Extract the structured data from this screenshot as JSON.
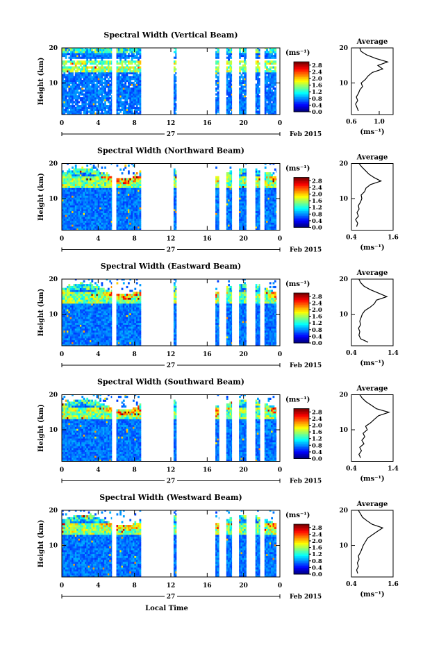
{
  "figure": {
    "date_label": "Feb 2015",
    "day_label": "27",
    "xlabel": "Local Time",
    "ylabel": "Height (km)",
    "units": "(ms⁻¹)",
    "avg_title": "Average",
    "avg_xlabel": "(ms⁻¹)",
    "colorbar_ticks": [
      "2.8",
      "2.4",
      "2.0",
      "1.6",
      "1.2",
      "0.8",
      "0.4",
      "0.0"
    ],
    "colormap": "jet",
    "colorbar_range": [
      0.0,
      3.0
    ]
  },
  "chart_data": [
    {
      "type": "heatmap",
      "title": "Spectral Width (Vertical Beam)",
      "xlim": [
        0,
        24
      ],
      "ylim": [
        1,
        20
      ],
      "xticks": [
        "0",
        "4",
        "8",
        "12",
        "16",
        "20",
        "0"
      ],
      "yticks": [
        "20",
        "10"
      ],
      "data_intervals_hours": [
        [
          0,
          5.5
        ],
        [
          6,
          8.7
        ],
        [
          12.3,
          12.6
        ],
        [
          16.9,
          17.3
        ],
        [
          18.1,
          18.7
        ],
        [
          19.5,
          20.3
        ],
        [
          21.3,
          21.8
        ],
        [
          22.3,
          23.6
        ]
      ],
      "profile": {
        "type": "line",
        "xticks": [
          "0.6",
          "1.0"
        ],
        "xlim": [
          0.6,
          1.2
        ],
        "height_km": [
          2,
          3,
          4,
          5,
          6,
          7,
          8,
          9,
          10,
          11,
          12,
          13,
          14,
          15,
          16,
          17,
          18,
          19,
          20
        ],
        "values": [
          0.7,
          0.68,
          0.66,
          0.69,
          0.67,
          0.7,
          0.72,
          0.76,
          0.74,
          0.8,
          0.84,
          0.9,
          1.05,
          0.98,
          1.12,
          0.95,
          0.82,
          0.74,
          0.72
        ]
      }
    },
    {
      "type": "heatmap",
      "title": "Spectral Width (Northward Beam)",
      "xlim": [
        0,
        24
      ],
      "ylim": [
        1,
        20
      ],
      "xticks": [
        "0",
        "4",
        "8",
        "12",
        "16",
        "20",
        "0"
      ],
      "yticks": [
        "20",
        "10"
      ],
      "data_intervals_hours": [
        [
          0,
          5.5
        ],
        [
          6,
          8.7
        ],
        [
          12.3,
          12.6
        ],
        [
          16.9,
          17.3
        ],
        [
          18.1,
          18.7
        ],
        [
          19.5,
          20.3
        ],
        [
          21.3,
          21.8
        ],
        [
          22.3,
          23.6
        ]
      ],
      "profile": {
        "type": "line",
        "xticks": [
          "0.4",
          "1.6"
        ],
        "xlim": [
          0.4,
          1.6
        ],
        "height_km": [
          2,
          3,
          4,
          5,
          6,
          7,
          8,
          9,
          10,
          11,
          12,
          13,
          14,
          15,
          16,
          17,
          18,
          19,
          20
        ],
        "values": [
          0.55,
          0.58,
          0.52,
          0.6,
          0.56,
          0.62,
          0.6,
          0.66,
          0.7,
          0.68,
          0.78,
          0.82,
          0.95,
          1.25,
          1.05,
          0.9,
          0.8,
          0.7,
          0.62
        ]
      }
    },
    {
      "type": "heatmap",
      "title": "Spectral Width (Eastward Beam)",
      "xlim": [
        0,
        24
      ],
      "ylim": [
        1,
        20
      ],
      "xticks": [
        "0",
        "4",
        "8",
        "12",
        "16",
        "20",
        "0"
      ],
      "yticks": [
        "20",
        "10"
      ],
      "data_intervals_hours": [
        [
          0,
          5.5
        ],
        [
          6,
          8.7
        ],
        [
          12.3,
          12.6
        ],
        [
          16.9,
          17.3
        ],
        [
          18.1,
          18.7
        ],
        [
          19.5,
          20.3
        ],
        [
          21.3,
          21.8
        ],
        [
          22.3,
          23.6
        ]
      ],
      "profile": {
        "type": "line",
        "xticks": [
          "0.4",
          "1.4"
        ],
        "xlim": [
          0.4,
          1.4
        ],
        "height_km": [
          2,
          3,
          4,
          5,
          6,
          7,
          8,
          9,
          10,
          11,
          12,
          13,
          14,
          15,
          16,
          17,
          18,
          19,
          20
        ],
        "values": [
          0.8,
          0.62,
          0.58,
          0.6,
          0.57,
          0.62,
          0.6,
          0.63,
          0.66,
          0.72,
          0.85,
          0.95,
          1.0,
          1.25,
          1.05,
          0.85,
          0.7,
          0.62,
          0.58
        ]
      }
    },
    {
      "type": "heatmap",
      "title": "Spectral Width (Southward Beam)",
      "xlim": [
        0,
        24
      ],
      "ylim": [
        1,
        20
      ],
      "xticks": [
        "0",
        "4",
        "8",
        "12",
        "16",
        "20",
        "0"
      ],
      "yticks": [
        "20",
        "10"
      ],
      "data_intervals_hours": [
        [
          0,
          5.5
        ],
        [
          6,
          8.7
        ],
        [
          12.3,
          12.6
        ],
        [
          16.9,
          17.3
        ],
        [
          18.1,
          18.7
        ],
        [
          19.5,
          20.3
        ],
        [
          21.3,
          21.8
        ],
        [
          22.3,
          23.6
        ]
      ],
      "profile": {
        "type": "line",
        "xticks": [
          "0.4",
          "1.4"
        ],
        "xlim": [
          0.4,
          1.4
        ],
        "height_km": [
          2,
          3,
          4,
          5,
          6,
          7,
          8,
          9,
          10,
          11,
          12,
          13,
          14,
          15,
          16,
          17,
          18,
          19,
          20
        ],
        "values": [
          0.62,
          0.58,
          0.64,
          0.6,
          0.7,
          0.65,
          0.72,
          0.68,
          0.78,
          0.74,
          0.86,
          0.95,
          1.05,
          1.3,
          1.0,
          0.88,
          0.75,
          0.66,
          0.6
        ]
      }
    },
    {
      "type": "heatmap",
      "title": "Spectral Width (Westward Beam)",
      "xlim": [
        0,
        24
      ],
      "ylim": [
        1,
        20
      ],
      "xticks": [
        "0",
        "4",
        "8",
        "12",
        "16",
        "20",
        "0"
      ],
      "yticks": [
        "20",
        "10"
      ],
      "data_intervals_hours": [
        [
          0,
          5.5
        ],
        [
          6,
          8.7
        ],
        [
          12.3,
          12.6
        ],
        [
          16.9,
          17.3
        ],
        [
          18.1,
          18.7
        ],
        [
          19.5,
          20.3
        ],
        [
          21.3,
          21.8
        ],
        [
          22.3,
          23.6
        ]
      ],
      "profile": {
        "type": "line",
        "xticks": [
          "0.4",
          "1.6"
        ],
        "xlim": [
          0.4,
          1.6
        ],
        "height_km": [
          2,
          3,
          4,
          5,
          6,
          7,
          8,
          9,
          10,
          11,
          12,
          13,
          14,
          15,
          16,
          17,
          18,
          19,
          20
        ],
        "values": [
          0.58,
          0.55,
          0.6,
          0.57,
          0.62,
          0.6,
          0.66,
          0.7,
          0.74,
          0.8,
          0.86,
          1.0,
          1.15,
          1.3,
          1.0,
          0.85,
          0.72,
          0.66,
          0.6
        ]
      }
    }
  ]
}
